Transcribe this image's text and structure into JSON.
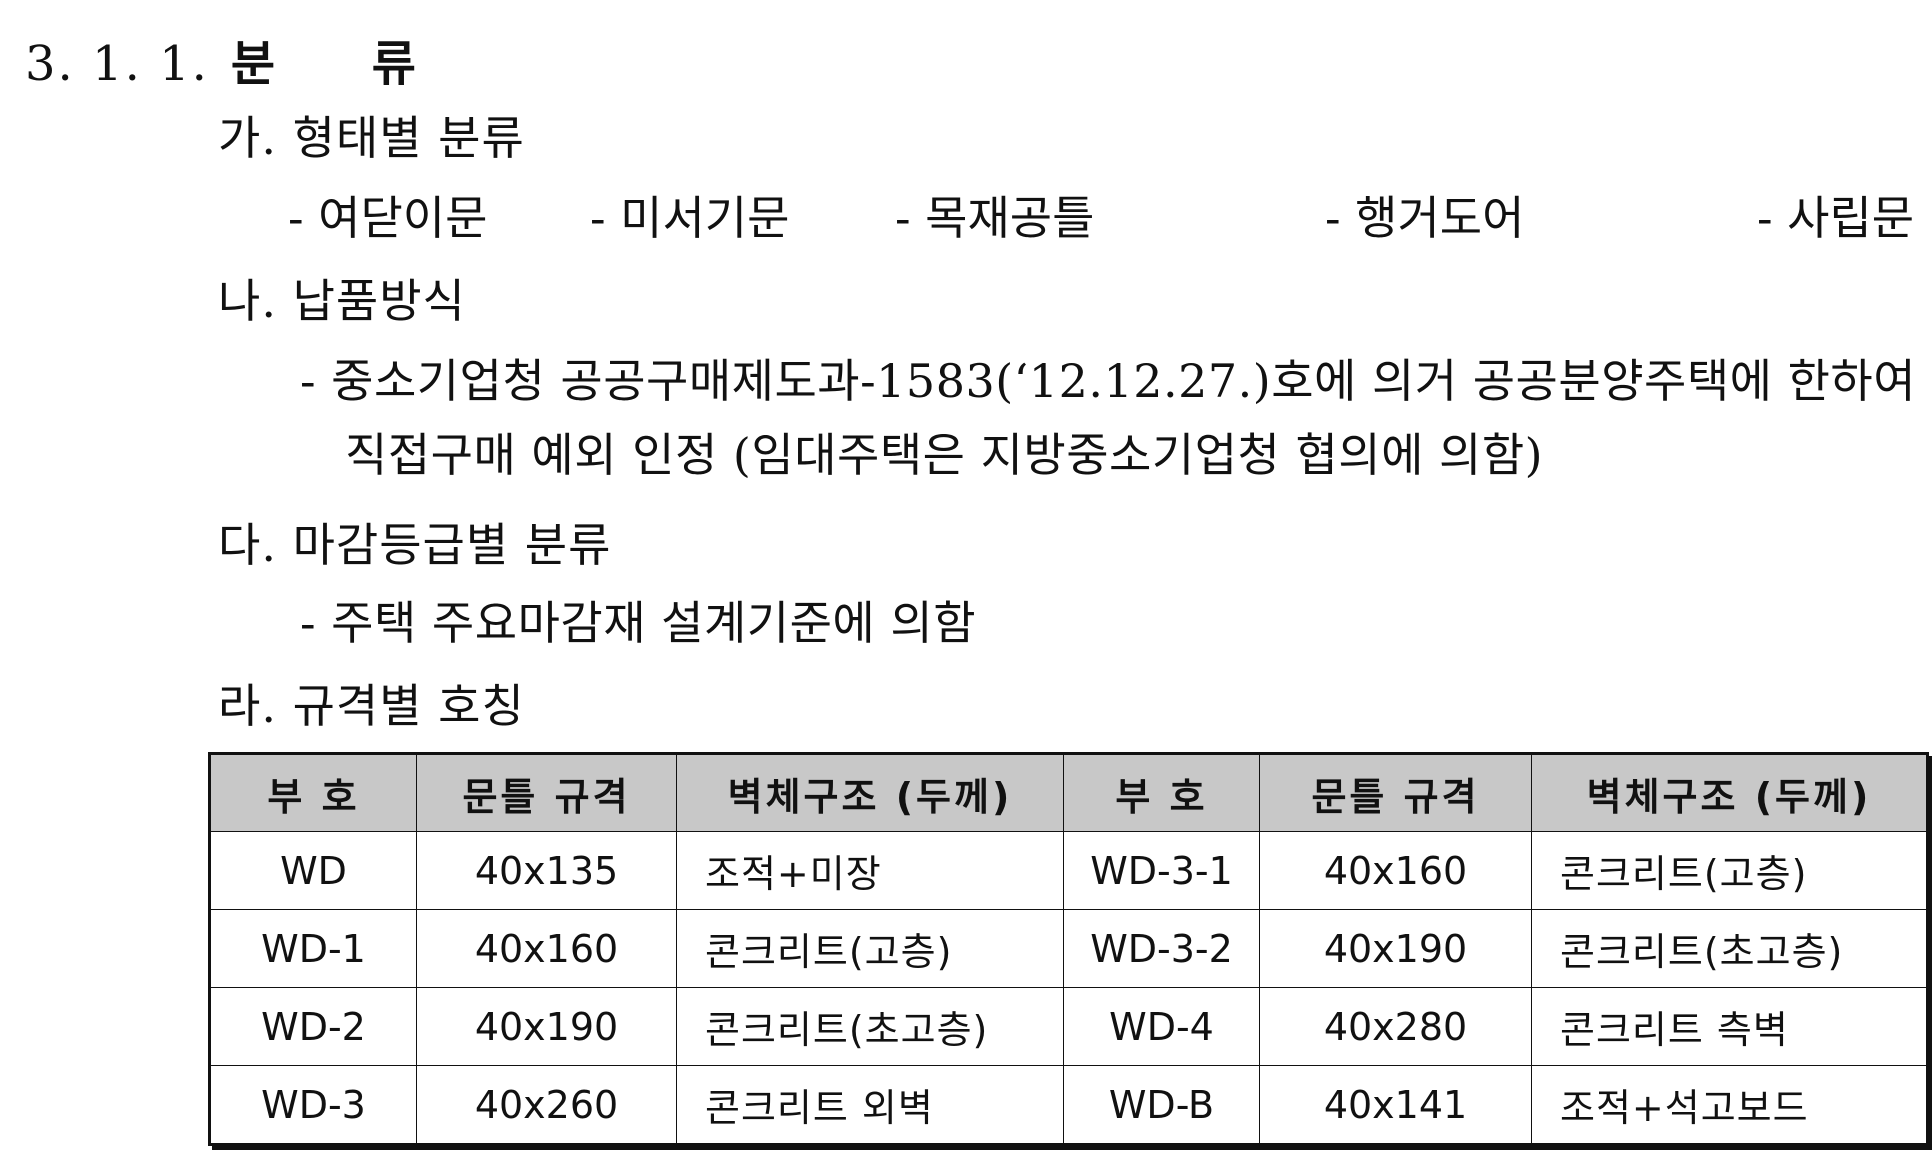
{
  "heading": {
    "number": "3. 1. 1.",
    "title": "분 류"
  },
  "sections": {
    "a": {
      "title": "가. 형태별 분류",
      "items": [
        "- 여닫이문",
        "- 미서기문",
        "- 목재공틀",
        "- 행거도어",
        "- 사립문"
      ]
    },
    "b": {
      "title": "나. 납품방식",
      "line1": "- 중소기업청 공공구매제도과-1583(‘12.12.27.)호에 의거 공공분양주택에 한하여",
      "line2": "직접구매 예외 인정 (임대주택은 지방중소기업청 협의에 의함)"
    },
    "c": {
      "title": "다. 마감등급별 분류",
      "line1": "- 주택 주요마감재 설계기준에 의함"
    },
    "d": {
      "title": "라. 규격별 호칭"
    }
  },
  "table": {
    "headers": [
      "부 호",
      "문틀 규격",
      "벽체구조 (두께)",
      "부 호",
      "문틀 규격",
      "벽체구조 (두께)"
    ],
    "rows": [
      [
        "WD",
        "40x135",
        "조적+미장",
        "WD-3-1",
        "40x160",
        "콘크리트(고층)"
      ],
      [
        "WD-1",
        "40x160",
        "콘크리트(고층)",
        "WD-3-2",
        "40x190",
        "콘크리트(초고층)"
      ],
      [
        "WD-2",
        "40x190",
        "콘크리트(초고층)",
        "WD-4",
        "40x280",
        "콘크리트 측벽"
      ],
      [
        "WD-3",
        "40x260",
        "콘크리트 외벽",
        "WD-B",
        "40x141",
        "조적+석고보드"
      ]
    ]
  }
}
